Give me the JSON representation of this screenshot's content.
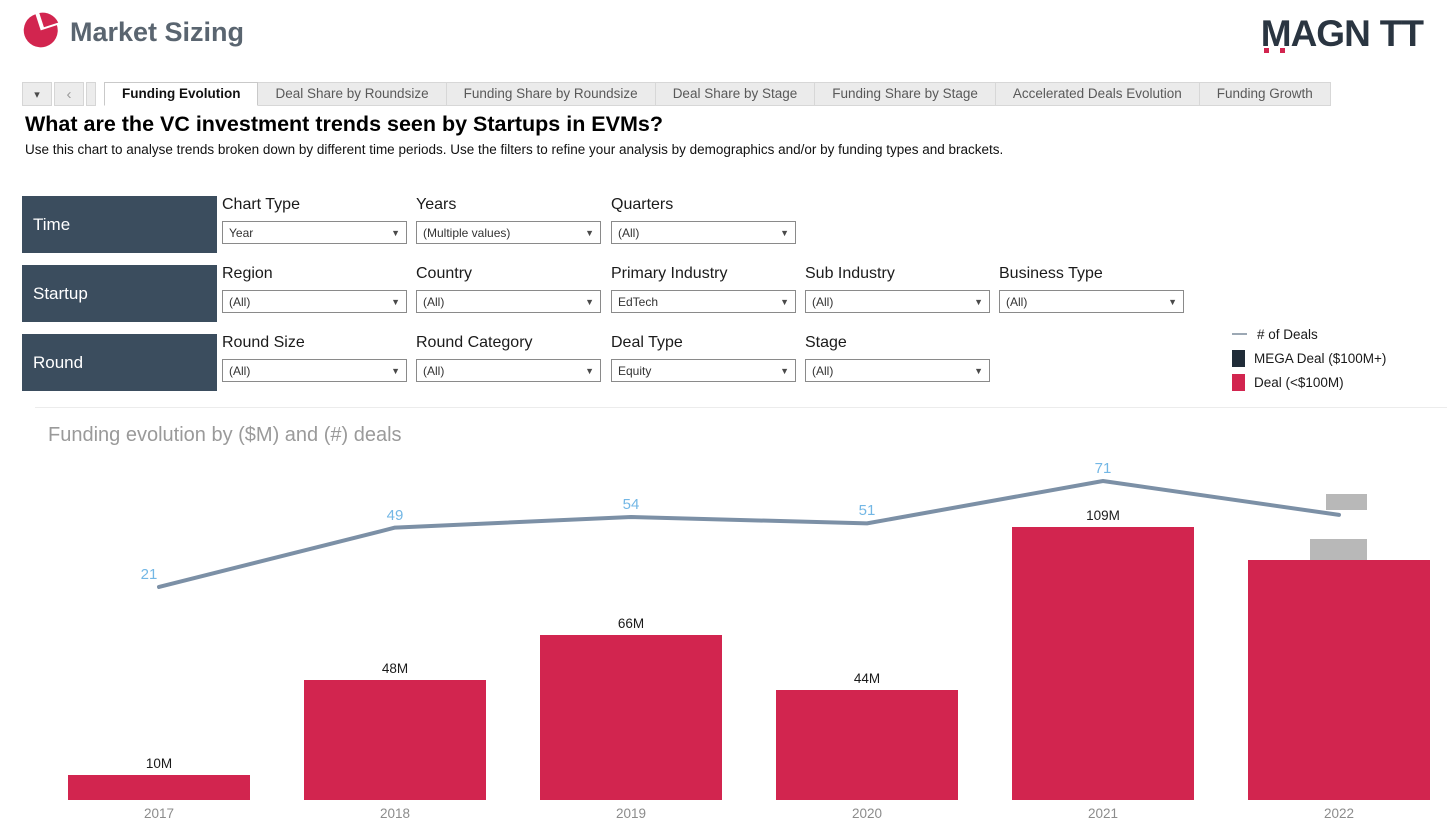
{
  "header": {
    "app_title": "Market Sizing",
    "brand": "MAGNiTT",
    "logo_icon": "pie-chart-icon"
  },
  "nav": {
    "tab_menu_icon": "caret-down-icon",
    "back_icon": "chevron-left-icon"
  },
  "tabs": [
    {
      "label": "Funding Evolution",
      "active": true
    },
    {
      "label": "Deal Share by Roundsize",
      "active": false
    },
    {
      "label": "Funding Share by Roundsize",
      "active": false
    },
    {
      "label": "Deal Share by Stage",
      "active": false
    },
    {
      "label": "Funding Share by Stage",
      "active": false
    },
    {
      "label": "Accelerated Deals Evolution",
      "active": false
    },
    {
      "label": "Funding Growth",
      "active": false
    }
  ],
  "question": {
    "title": "What are the VC investment trends seen by Startups in EVMs?",
    "subtitle": "Use this chart to analyse trends broken down by different time periods. Use the filters to refine your analysis by demographics and/or by funding types and brackets."
  },
  "filters": [
    {
      "group": "Time",
      "fields": [
        {
          "label": "Chart Type",
          "value": "Year"
        },
        {
          "label": "Years",
          "value": "(Multiple values)"
        },
        {
          "label": "Quarters",
          "value": "(All)"
        }
      ]
    },
    {
      "group": "Startup",
      "fields": [
        {
          "label": "Region",
          "value": "(All)"
        },
        {
          "label": "Country",
          "value": "(All)"
        },
        {
          "label": "Primary Industry",
          "value": "EdTech"
        },
        {
          "label": "Sub Industry",
          "value": "(All)"
        },
        {
          "label": "Business Type",
          "value": "(All)"
        }
      ]
    },
    {
      "group": "Round",
      "fields": [
        {
          "label": "Round Size",
          "value": "(All)"
        },
        {
          "label": "Round Category",
          "value": "(All)"
        },
        {
          "label": "Deal Type",
          "value": "Equity"
        },
        {
          "label": "Stage",
          "value": "(All)"
        }
      ]
    }
  ],
  "legend": [
    {
      "label": "# of Deals",
      "swatch": "line",
      "color": "#9CA8B4"
    },
    {
      "label": "MEGA Deal ($100M+)",
      "swatch": "square",
      "color": "#202C38"
    },
    {
      "label": "Deal (<$100M)",
      "swatch": "square",
      "color": "#D2254F"
    }
  ],
  "chart_data": {
    "type": "bar",
    "title": "Funding evolution by ($M) and (#) deals",
    "categories": [
      "2017",
      "2018",
      "2019",
      "2020",
      "2021",
      "2022"
    ],
    "series": [
      {
        "name": "Deal (<$100M)",
        "type": "bar",
        "unit": "$M",
        "values": [
          10,
          48,
          66,
          44,
          109,
          96
        ],
        "labels": [
          "10M",
          "48M",
          "66M",
          "44M",
          "109M",
          ""
        ]
      },
      {
        "name": "# of Deals",
        "type": "line",
        "values": [
          21,
          49,
          54,
          51,
          71,
          55
        ],
        "labels": [
          "21",
          "49",
          "54",
          "51",
          "71",
          ""
        ]
      }
    ],
    "xlabel": "",
    "ylabel": "",
    "grid": false,
    "legend_position": "top-right",
    "colors": {
      "bar": "#D2254F",
      "line": "#7C90A6",
      "line_label": "#73B7E5",
      "axis_label": "#8C8C8C"
    }
  }
}
